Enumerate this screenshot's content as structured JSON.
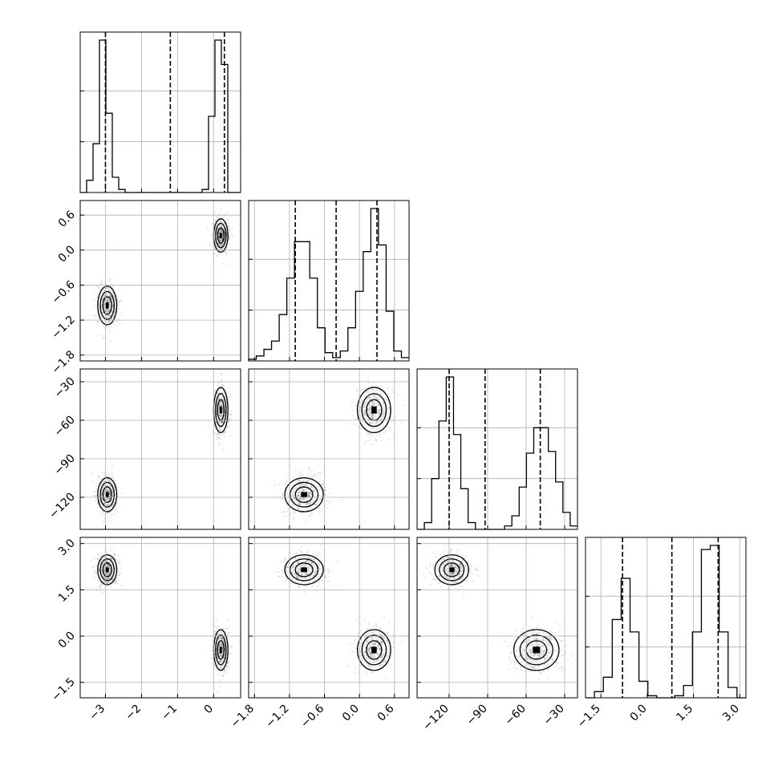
{
  "chart_data": {
    "type": "corner",
    "parameters": [
      {
        "ticks": [
          -3,
          -2,
          -1,
          0
        ],
        "tick_labels": [
          "−3",
          "−2",
          "−1",
          "0"
        ],
        "range": [
          -3.7,
          0.75
        ],
        "quantiles": [
          -3.0,
          -1.2,
          0.3
        ],
        "hist": [
          0,
          8,
          32,
          100,
          52,
          10,
          2,
          0,
          0,
          0,
          0,
          0,
          0,
          0,
          0,
          0,
          0,
          0,
          0,
          2,
          50,
          100,
          84,
          0,
          0
        ]
      },
      {
        "ticks": [
          -1.8,
          -1.2,
          -0.6,
          0.0,
          0.6
        ],
        "tick_labels": [
          "−1.8",
          "−1.2",
          "−0.6",
          "0.0",
          "0.6"
        ],
        "range": [
          -1.9,
          0.85
        ],
        "quantiles": [
          -1.1,
          -0.4,
          0.3
        ],
        "hist": [
          1,
          3,
          7,
          12,
          28,
          50,
          72,
          72,
          50,
          20,
          5,
          2,
          6,
          20,
          42,
          66,
          92,
          70,
          30,
          6,
          2
        ]
      },
      {
        "ticks": [
          -120,
          -90,
          -60,
          -30
        ],
        "tick_labels": [
          "−120",
          "−90",
          "−60",
          "−30"
        ],
        "range": [
          -145,
          -20
        ],
        "quantiles": [
          -120,
          -92,
          -49
        ],
        "hist": [
          0,
          4,
          30,
          64,
          90,
          56,
          24,
          4,
          0,
          0,
          0,
          0,
          2,
          8,
          25,
          45,
          60,
          60,
          46,
          28,
          10,
          2
        ]
      },
      {
        "ticks": [
          -1.5,
          0.0,
          1.5,
          3.0
        ],
        "tick_labels": [
          "−1.5",
          "0.0",
          "1.5",
          "3.0"
        ],
        "range": [
          -2.0,
          3.2
        ],
        "quantiles": [
          -0.8,
          0.8,
          2.3
        ],
        "hist": [
          0,
          3,
          10,
          38,
          58,
          32,
          8,
          1,
          0,
          0,
          1,
          6,
          32,
          72,
          74,
          32,
          5,
          0
        ]
      }
    ],
    "y_axis_ticks": {
      "1": {
        "ticks": [
          -1.8,
          -1.2,
          -0.6,
          0.0,
          0.6
        ],
        "tick_labels": [
          "−1.8",
          "−1.2",
          "−0.6",
          "0.0",
          "0.6"
        ]
      },
      "2": {
        "ticks": [
          -120,
          -90,
          -60,
          -30
        ],
        "tick_labels": [
          "−120",
          "−90",
          "−60",
          "−30"
        ]
      },
      "3": {
        "ticks": [
          -1.5,
          0.0,
          1.5,
          3.0
        ],
        "tick_labels": [
          "−1.5",
          "0.0",
          "1.5",
          "3.0"
        ]
      }
    },
    "modes": [
      {
        "center": [
          -2.95,
          -0.95,
          -118,
          2.15
        ],
        "sd": [
          0.12,
          0.15,
          6,
          0.22
        ],
        "weight": 0.5
      },
      {
        "center": [
          0.2,
          0.25,
          -52,
          -0.45
        ],
        "sd": [
          0.09,
          0.13,
          8,
          0.3
        ],
        "weight": 0.5
      }
    ],
    "grid": true,
    "legend": "none"
  }
}
